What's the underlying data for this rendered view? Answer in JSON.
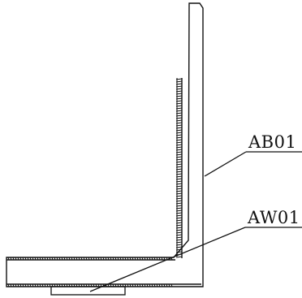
{
  "drawing": {
    "colors": {
      "line": "#111111",
      "background": "#ffffff"
    },
    "labels": {
      "upper": "AB01",
      "lower": "AW01"
    }
  }
}
